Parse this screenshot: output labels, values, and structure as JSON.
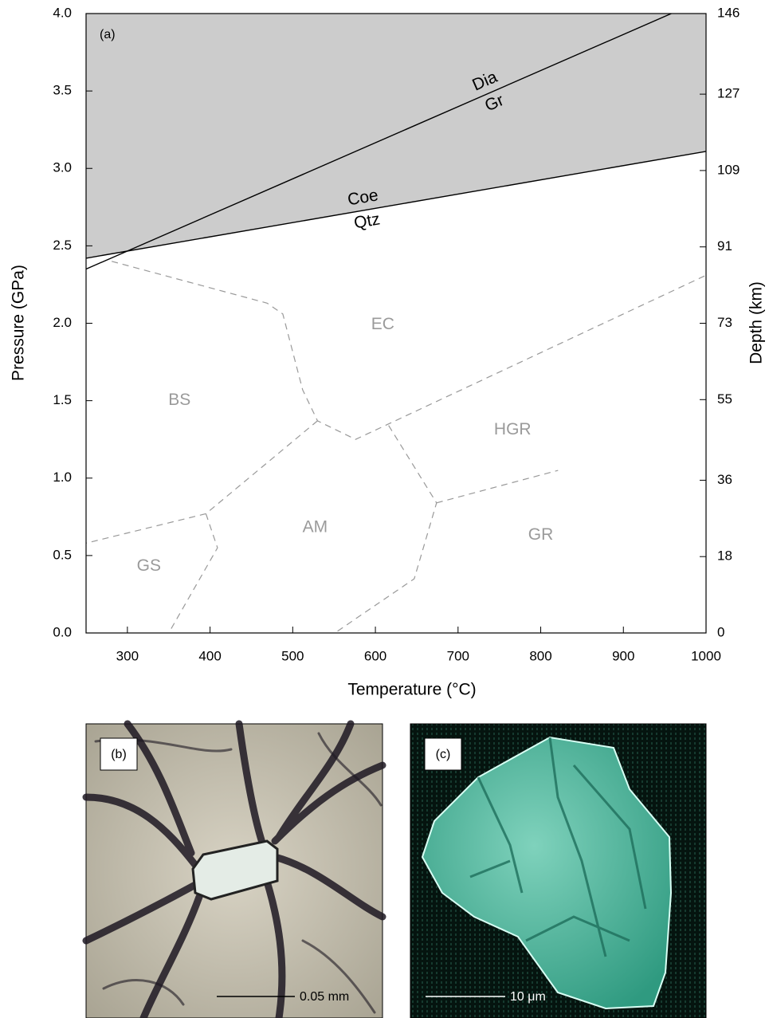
{
  "chart_data": {
    "type": "line",
    "panel_label": "(a)",
    "xlabel": "Temperature (°C)",
    "ylabel": "Pressure (GPa)",
    "y2label": "Depth (km)",
    "xlim": [
      250,
      1000
    ],
    "ylim": [
      0,
      4
    ],
    "y2lim": [
      0,
      146
    ],
    "xticks": [
      300,
      400,
      500,
      600,
      700,
      800,
      900,
      1000
    ],
    "yticks": [
      {
        "value": 0,
        "label": "0.0"
      },
      0.5,
      {
        "value": 1,
        "label": "1.0"
      },
      1.5,
      {
        "value": 2,
        "label": "2.0"
      },
      2.5,
      {
        "value": 3,
        "label": "3.0"
      },
      3.5,
      {
        "value": 4,
        "label": "4.0"
      }
    ],
    "y2ticks": [
      0,
      18,
      36,
      55,
      73,
      91,
      109,
      127,
      146
    ],
    "shade_above_series": 1,
    "shade_color": "#cccccc",
    "series": [
      {
        "labels": [
          "Dia",
          "Gr"
        ],
        "color": "#000000",
        "style": "solid",
        "x": [
          250,
          958
        ],
        "values": [
          2.35,
          4.0
        ]
      },
      {
        "labels": [
          "Coe",
          "Qtz"
        ],
        "color": "#000000",
        "style": "solid",
        "x": [
          250,
          1000
        ],
        "values": [
          2.42,
          3.11
        ]
      },
      {
        "color": "#999999",
        "style": "dashed",
        "x": [
          281,
          469,
          488,
          512,
          530,
          576,
          1000
        ],
        "values": [
          2.4,
          2.13,
          2.06,
          1.57,
          1.37,
          1.25,
          2.31
        ]
      },
      {
        "color": "#999999",
        "style": "dashed",
        "x": [
          616,
          674,
          647,
          551
        ],
        "values": [
          1.34,
          0.84,
          0.35,
          0.0
        ]
      },
      {
        "color": "#999999",
        "style": "dashed",
        "x": [
          674,
          821
        ],
        "values": [
          0.84,
          1.05
        ]
      },
      {
        "color": "#999999",
        "style": "dashed",
        "x": [
          530,
          395,
          250
        ],
        "values": [
          1.37,
          0.77,
          0.58
        ]
      },
      {
        "color": "#999999",
        "style": "dashed",
        "x": [
          395,
          409,
          350
        ],
        "values": [
          0.77,
          0.55,
          0.0
        ]
      }
    ],
    "facies_labels": [
      {
        "text": "EC",
        "x": 609,
        "y": 1.99
      },
      {
        "text": "BS",
        "x": 363,
        "y": 1.5
      },
      {
        "text": "HGR",
        "x": 766,
        "y": 1.31
      },
      {
        "text": "AM",
        "x": 527,
        "y": 0.68
      },
      {
        "text": "GR",
        "x": 800,
        "y": 0.63
      },
      {
        "text": "GS",
        "x": 326,
        "y": 0.43
      }
    ]
  },
  "photos": [
    {
      "label": "(b)",
      "scale_bar": "0.05 mm"
    },
    {
      "label": "(c)",
      "scale_bar": "10 μm"
    }
  ]
}
